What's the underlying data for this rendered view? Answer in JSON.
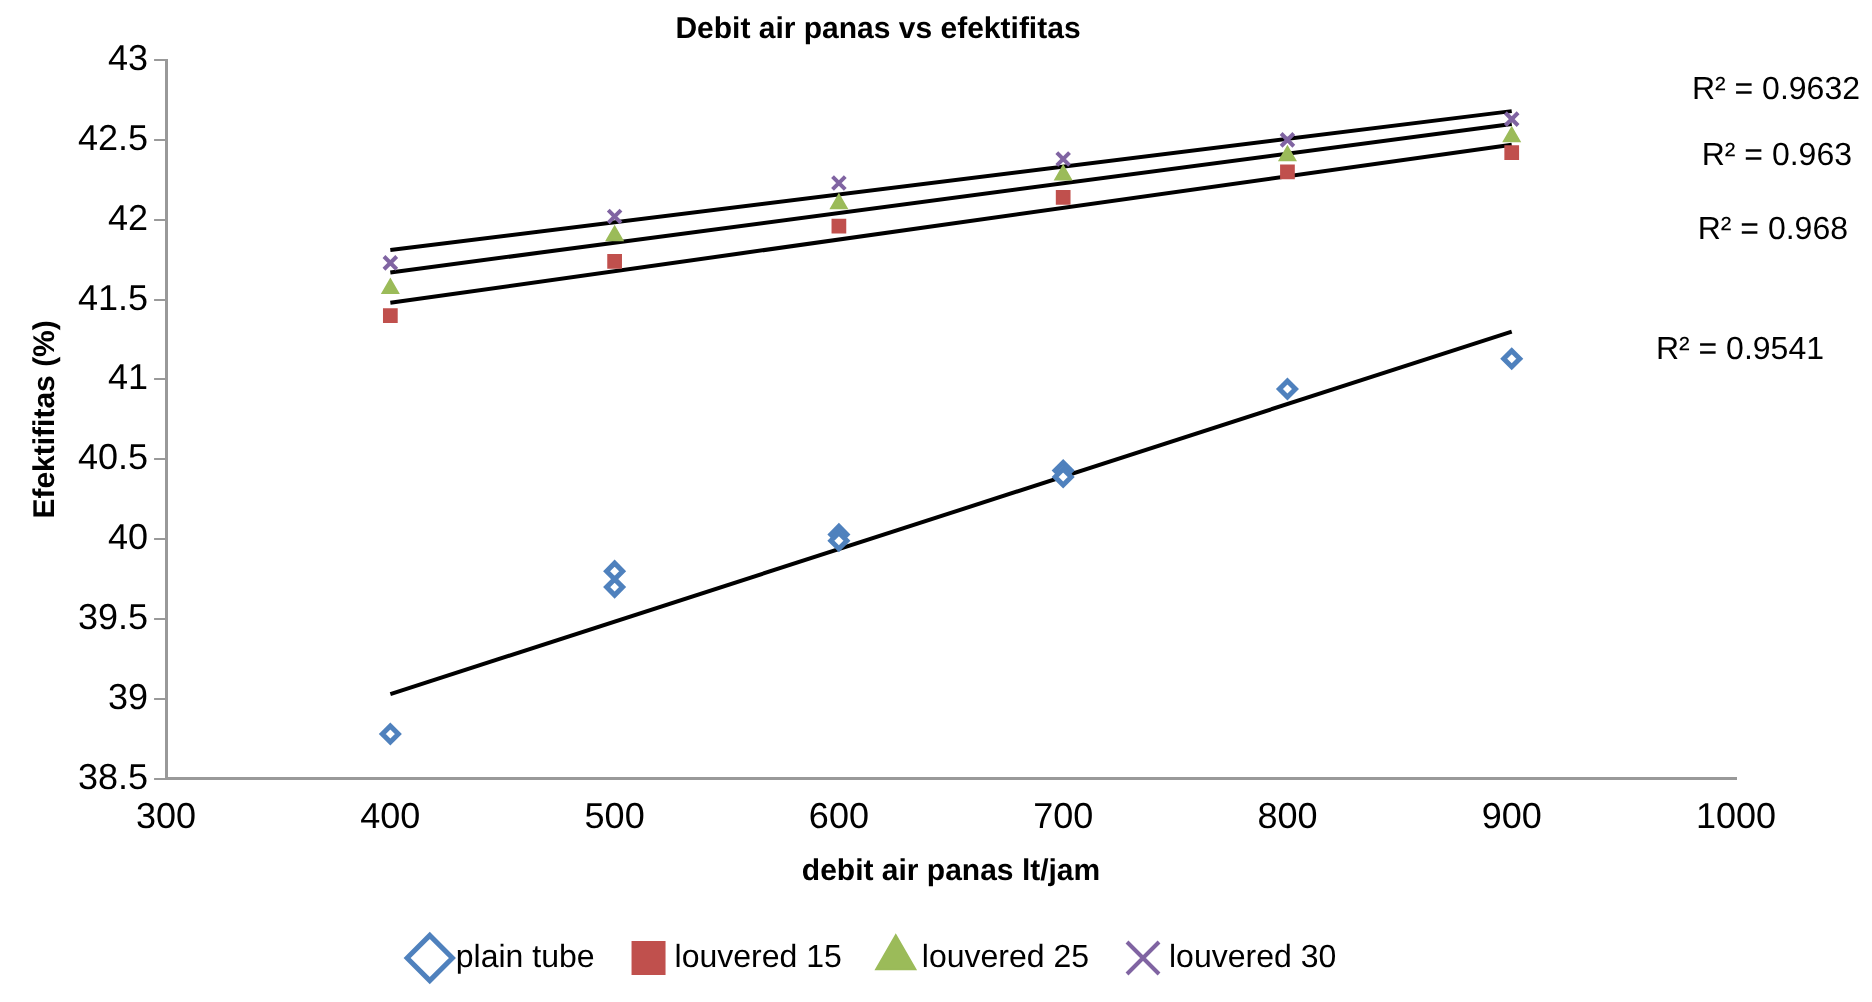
{
  "chart_data": {
    "type": "scatter",
    "title": "Debit air panas vs efektifitas",
    "xlabel": "debit air panas lt/jam",
    "ylabel": "Efektifitas (%)",
    "xlim": [
      300,
      1000
    ],
    "xticks": [
      300,
      400,
      500,
      600,
      700,
      800,
      900,
      1000
    ],
    "ylim": [
      38.5,
      43
    ],
    "yticks": [
      38.5,
      39,
      39.5,
      40,
      40.5,
      41,
      41.5,
      42,
      42.5,
      43
    ],
    "grid": false,
    "legend": "bottom",
    "series": [
      {
        "name": "plain tube",
        "color": "#4f81bd",
        "marker": "diamond",
        "x": [
          400,
          500,
          500,
          600,
          600,
          700,
          700,
          800,
          900
        ],
        "values": [
          38.78,
          39.8,
          39.7,
          40.03,
          39.99,
          40.43,
          40.39,
          40.94,
          41.13
        ]
      },
      {
        "name": "louvered 15",
        "color": "#c0504d",
        "marker": "square",
        "x": [
          400,
          500,
          600,
          700,
          800,
          900
        ],
        "values": [
          41.4,
          41.74,
          41.96,
          42.14,
          42.3,
          42.42
        ]
      },
      {
        "name": "louvered 25",
        "color": "#9bbb59",
        "marker": "triangle",
        "x": [
          400,
          500,
          600,
          700,
          800,
          900
        ],
        "values": [
          41.57,
          41.9,
          42.1,
          42.28,
          42.4,
          42.52
        ]
      },
      {
        "name": "louvered 30",
        "color": "#8064a2",
        "marker": "cross",
        "x": [
          400,
          500,
          600,
          700,
          800,
          900
        ],
        "values": [
          41.73,
          42.02,
          42.23,
          42.38,
          42.5,
          42.63
        ]
      },
      {
        "type": "line",
        "color": "#000000",
        "marker": "none",
        "x": [
          400,
          900
        ],
        "values": [
          39.03,
          41.3
        ]
      },
      {
        "type": "line",
        "color": "#000000",
        "marker": "none",
        "x": [
          400,
          900
        ],
        "values": [
          41.48,
          42.47
        ]
      },
      {
        "type": "line",
        "color": "#000000",
        "marker": "none",
        "x": [
          400,
          900
        ],
        "values": [
          41.67,
          42.6
        ]
      },
      {
        "type": "line",
        "color": "#000000",
        "marker": "none",
        "x": [
          400,
          900
        ],
        "values": [
          41.81,
          42.68
        ]
      }
    ],
    "annotations": [
      "R² = 0.9632",
      "R² = 0.963",
      "R² = 0.968",
      "R² = 0.9541"
    ]
  }
}
